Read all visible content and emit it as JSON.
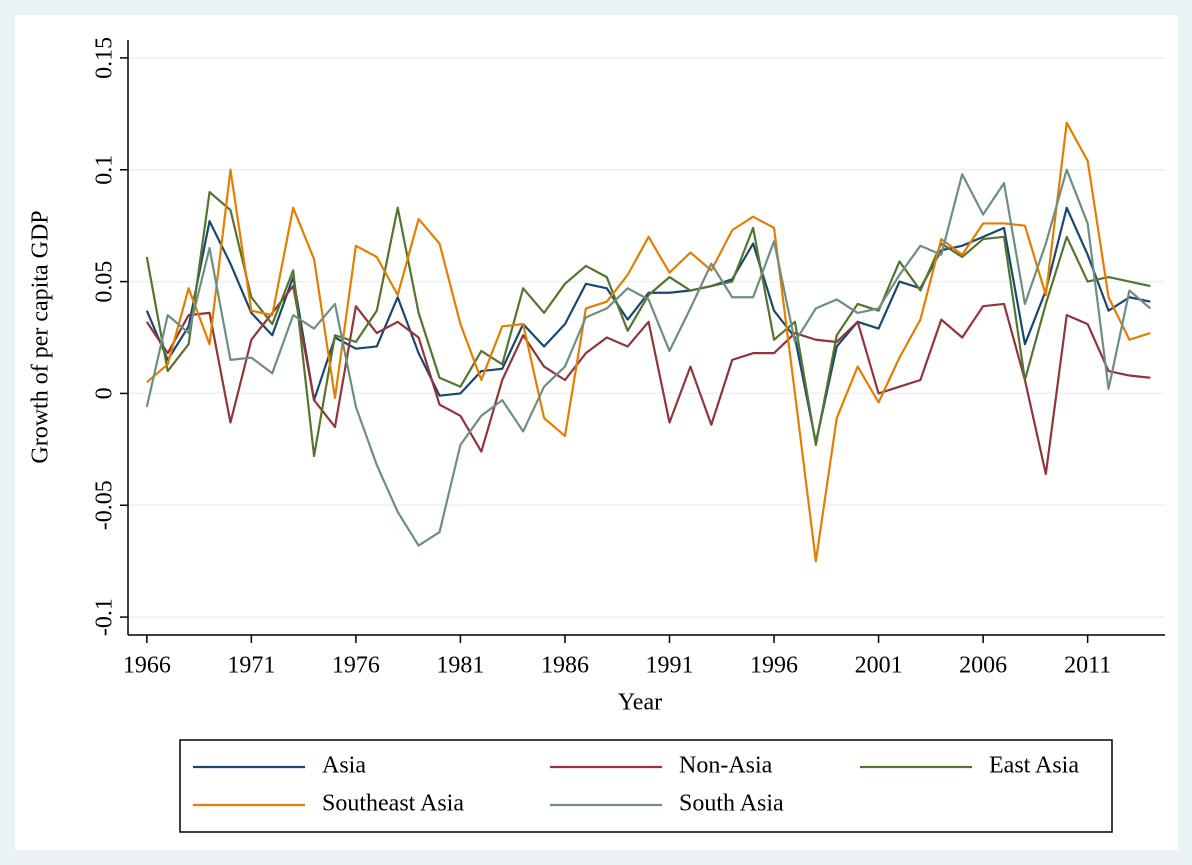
{
  "chart_data": {
    "type": "line",
    "x_label": "Year",
    "y_label": "Growth of per capita GDP",
    "x": [
      1966,
      1967,
      1968,
      1969,
      1970,
      1971,
      1972,
      1973,
      1974,
      1975,
      1976,
      1977,
      1978,
      1979,
      1980,
      1981,
      1982,
      1983,
      1984,
      1985,
      1986,
      1987,
      1988,
      1989,
      1990,
      1991,
      1992,
      1993,
      1994,
      1995,
      1996,
      1997,
      1998,
      1999,
      2000,
      2001,
      2002,
      2003,
      2004,
      2005,
      2006,
      2007,
      2008,
      2009,
      2010,
      2011,
      2012,
      2013,
      2014
    ],
    "xlim": [
      1965.1,
      2014.7
    ],
    "xticks": [
      1966,
      1971,
      1976,
      1981,
      1986,
      1991,
      1996,
      2001,
      2006,
      2011
    ],
    "ylim": [
      -0.108,
      0.158
    ],
    "yticks": [
      -0.1,
      -0.05,
      0,
      0.05,
      0.1,
      0.15
    ],
    "grid": true,
    "series": [
      {
        "name": "Asia",
        "color": "#1a476f",
        "values": [
          0.037,
          0.015,
          0.03,
          0.077,
          0.058,
          0.036,
          0.026,
          0.052,
          -0.003,
          0.025,
          0.02,
          0.021,
          0.043,
          0.018,
          -0.001,
          0.0,
          0.01,
          0.011,
          0.031,
          0.021,
          0.031,
          0.049,
          0.047,
          0.033,
          0.045,
          0.045,
          0.046,
          0.048,
          0.051,
          0.067,
          0.037,
          0.025,
          -0.022,
          0.021,
          0.032,
          0.029,
          0.05,
          0.047,
          0.064,
          0.066,
          0.07,
          0.074,
          0.022,
          0.046,
          0.083,
          0.062,
          0.037,
          0.043,
          0.041
        ]
      },
      {
        "name": "Non-Asia",
        "color": "#90353b",
        "values": [
          0.032,
          0.018,
          0.035,
          0.036,
          -0.013,
          0.024,
          0.036,
          0.048,
          -0.003,
          -0.015,
          0.039,
          0.027,
          0.032,
          0.025,
          -0.005,
          -0.01,
          -0.026,
          0.006,
          0.026,
          0.012,
          0.006,
          0.018,
          0.025,
          0.021,
          0.032,
          -0.013,
          0.012,
          -0.014,
          0.015,
          0.018,
          0.018,
          0.027,
          0.024,
          0.023,
          0.032,
          0.0,
          0.003,
          0.006,
          0.033,
          0.025,
          0.039,
          0.04,
          0.006,
          -0.036,
          0.035,
          0.031,
          0.01,
          0.008,
          0.007
        ]
      },
      {
        "name": "East Asia",
        "color": "#55752f",
        "values": [
          0.061,
          0.01,
          0.022,
          0.09,
          0.082,
          0.043,
          0.031,
          0.055,
          -0.028,
          0.026,
          0.023,
          0.037,
          0.083,
          0.036,
          0.007,
          0.003,
          0.019,
          0.013,
          0.047,
          0.036,
          0.049,
          0.057,
          0.052,
          0.028,
          0.044,
          0.052,
          0.046,
          0.048,
          0.05,
          0.074,
          0.024,
          0.032,
          -0.023,
          0.026,
          0.04,
          0.037,
          0.059,
          0.046,
          0.067,
          0.061,
          0.069,
          0.07,
          0.006,
          0.04,
          0.07,
          0.05,
          0.052,
          0.05,
          0.048
        ]
      },
      {
        "name": "Southeast Asia",
        "color": "#e37e00",
        "values": [
          0.005,
          0.013,
          0.047,
          0.022,
          0.1,
          0.037,
          0.035,
          0.083,
          0.06,
          -0.002,
          0.066,
          0.061,
          0.044,
          0.078,
          0.067,
          0.031,
          0.006,
          0.03,
          0.031,
          -0.011,
          -0.019,
          0.038,
          0.041,
          0.053,
          0.07,
          0.054,
          0.063,
          0.055,
          0.073,
          0.079,
          0.074,
          0.0,
          -0.075,
          -0.011,
          0.012,
          -0.004,
          0.016,
          0.033,
          0.069,
          0.062,
          0.076,
          0.076,
          0.075,
          0.044,
          0.121,
          0.104,
          0.043,
          0.024,
          0.027
        ]
      },
      {
        "name": "South Asia",
        "color": "#6e8e84",
        "values": [
          -0.006,
          0.035,
          0.027,
          0.065,
          0.015,
          0.016,
          0.009,
          0.035,
          0.029,
          0.04,
          -0.006,
          -0.032,
          -0.053,
          -0.068,
          -0.062,
          -0.023,
          -0.01,
          -0.003,
          -0.017,
          0.003,
          0.012,
          0.034,
          0.038,
          0.047,
          0.042,
          0.019,
          0.038,
          0.058,
          0.043,
          0.043,
          0.068,
          0.023,
          0.038,
          0.042,
          0.036,
          0.038,
          0.053,
          0.066,
          0.062,
          0.098,
          0.08,
          0.094,
          0.04,
          0.067,
          0.1,
          0.076,
          0.002,
          0.046,
          0.038
        ]
      }
    ]
  }
}
